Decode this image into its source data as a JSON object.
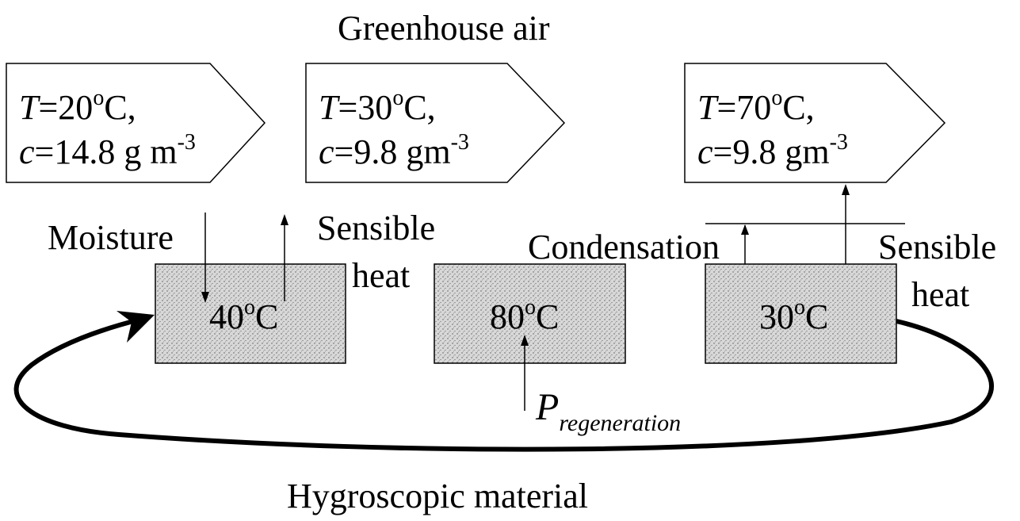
{
  "title": "Greenhouse air",
  "air_states": [
    {
      "temp_var": "T",
      "temp_eq": "=20",
      "temp_sup": "o",
      "temp_unit": "C,",
      "conc_var": "c",
      "conc_eq": "=14.8 g m",
      "conc_sup": "-3"
    },
    {
      "temp_var": "T",
      "temp_eq": "=30",
      "temp_sup": "o",
      "temp_unit": "C,",
      "conc_var": "c",
      "conc_eq": "=9.8 gm",
      "conc_sup": "-3"
    },
    {
      "temp_var": "T",
      "temp_eq": "=70",
      "temp_sup": "o",
      "temp_unit": "C,",
      "conc_var": "c",
      "conc_eq": "=9.8 gm",
      "conc_sup": "-3"
    }
  ],
  "material_blocks": [
    {
      "value": "40",
      "sup": "o",
      "unit": "C"
    },
    {
      "value": "80",
      "sup": "o",
      "unit": "C"
    },
    {
      "value": "30",
      "sup": "o",
      "unit": "C"
    }
  ],
  "labels": {
    "moisture": "Moisture",
    "sensible_heat_1a": "Sensible",
    "sensible_heat_1b": "heat",
    "condensation": "Condensation",
    "sensible_heat_2a": "Sensible",
    "sensible_heat_2b": "heat",
    "p_main": "P",
    "p_sub": "regeneration",
    "hygroscopic": "Hygroscopic material"
  }
}
